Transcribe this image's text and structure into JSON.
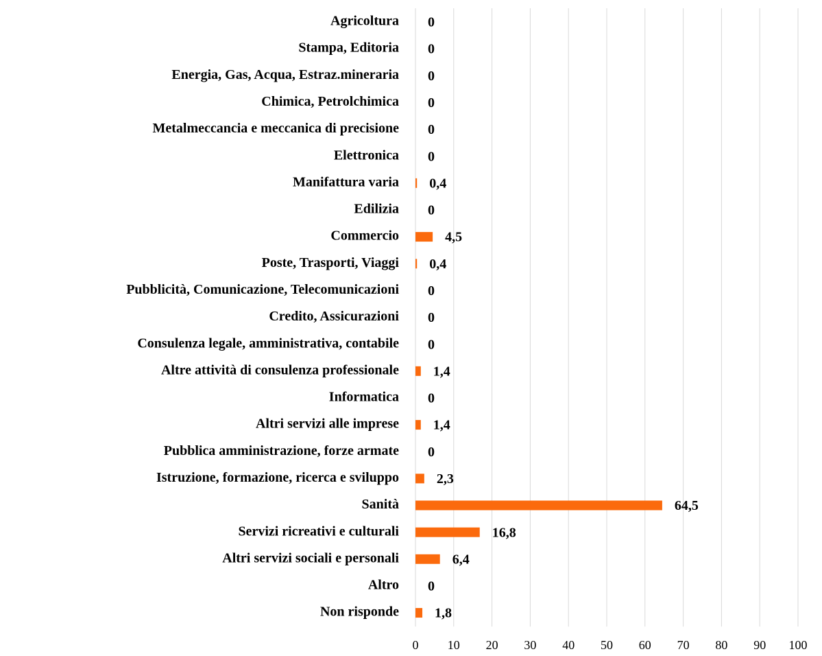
{
  "chart_data": {
    "type": "bar",
    "orientation": "horizontal",
    "categories": [
      "Agricoltura",
      "Stampa, Editoria",
      "Energia, Gas, Acqua, Estraz.mineraria",
      "Chimica, Petrolchimica",
      "Metalmeccancia e meccanica di precisione",
      "Elettronica",
      "Manifattura varia",
      "Edilizia",
      "Commercio",
      "Poste, Trasporti, Viaggi",
      "Pubblicità, Comunicazione, Telecomunicazioni",
      "Credito, Assicurazioni",
      "Consulenza legale, amministrativa, contabile",
      "Altre attività di consulenza professionale",
      "Informatica",
      "Altri servizi alle imprese",
      "Pubblica amministrazione, forze armate",
      "Istruzione, formazione, ricerca e sviluppo",
      "Sanità",
      "Servizi ricreativi e culturali",
      "Altri servizi sociali e personali",
      "Altro",
      "Non risponde"
    ],
    "values": [
      0,
      0,
      0,
      0,
      0,
      0,
      0.4,
      0,
      4.5,
      0.4,
      0,
      0,
      0,
      1.4,
      0,
      1.4,
      0,
      2.3,
      64.5,
      16.8,
      6.4,
      0,
      1.8
    ],
    "value_labels": [
      "0",
      "0",
      "0",
      "0",
      "0",
      "0",
      "0,4",
      "0",
      "4,5",
      "0,4",
      "0",
      "0",
      "0",
      "1,4",
      "0",
      "1,4",
      "0",
      "2,3",
      "64,5",
      "16,8",
      "6,4",
      "0",
      "1,8"
    ],
    "color": "#fb6a0d",
    "xlim": [
      0,
      100
    ],
    "xticks": [
      0,
      10,
      20,
      30,
      40,
      50,
      60,
      70,
      80,
      90,
      100
    ],
    "grid": true
  }
}
